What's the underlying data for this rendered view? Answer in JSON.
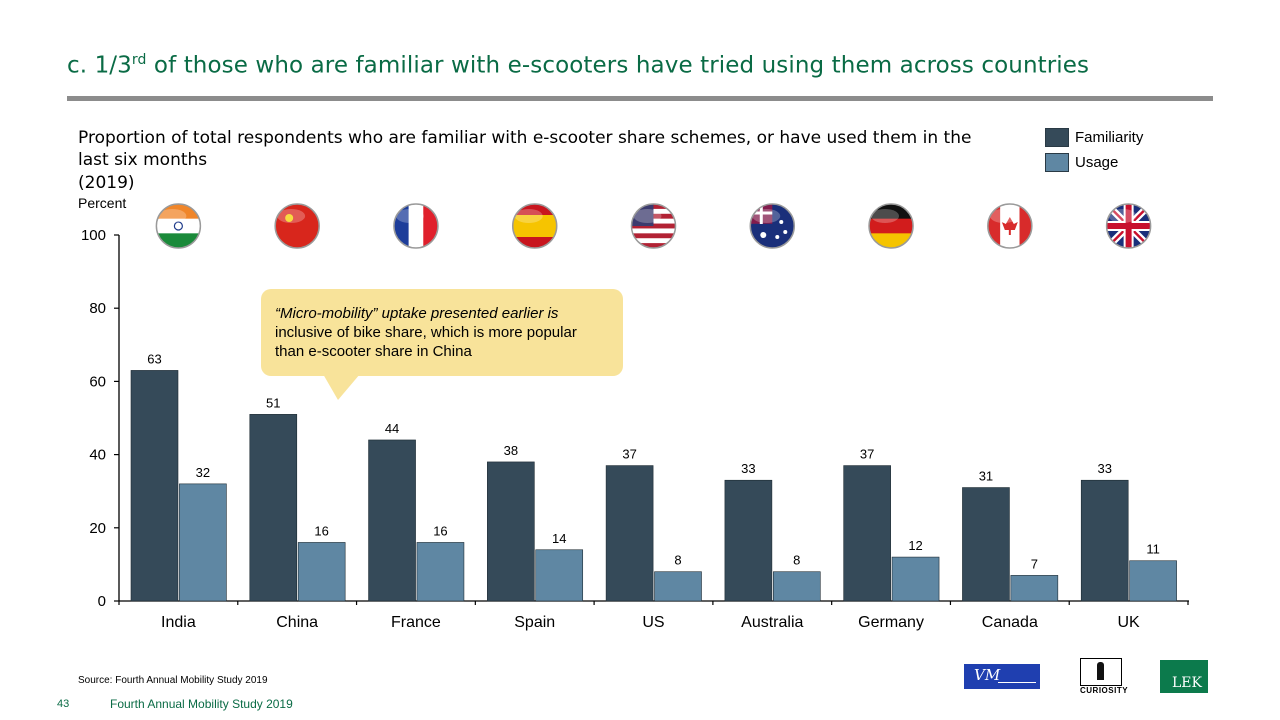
{
  "header": {
    "title_prefix": "c. 1/3",
    "title_sup": "rd",
    "title_rest": " of those who are familiar with e-scooters have tried using them across countries"
  },
  "chart_header": {
    "title": "Proportion of total respondents who are familiar with e-scooter share schemes, or have used them in the last six months",
    "year": "(2019)",
    "unit": "Percent"
  },
  "legend": {
    "familiarity": "Familiarity",
    "usage": "Usage"
  },
  "callout": {
    "text_italic": "“Micro-mobility” uptake presented earlier is",
    "text_rest": " inclusive of bike share, which is more popular than e-scooter share in China"
  },
  "chart_data": {
    "type": "bar",
    "categories": [
      "India",
      "China",
      "France",
      "Spain",
      "US",
      "Australia",
      "Germany",
      "Canada",
      "UK"
    ],
    "series": [
      {
        "name": "Familiarity",
        "values": [
          63,
          51,
          44,
          38,
          37,
          33,
          37,
          31,
          33
        ],
        "color": "#354a59"
      },
      {
        "name": "Usage",
        "values": [
          32,
          16,
          16,
          14,
          8,
          8,
          12,
          7,
          11
        ],
        "color": "#5f87a3"
      }
    ],
    "ylabel": "Percent",
    "ylim": [
      0,
      100
    ],
    "yticks": [
      0,
      20,
      40,
      60,
      80,
      100
    ],
    "grid": false,
    "legend_position": "top-right",
    "flag_icons": [
      "india-flag-icon",
      "china-flag-icon",
      "france-flag-icon",
      "spain-flag-icon",
      "us-flag-icon",
      "australia-flag-icon",
      "germany-flag-icon",
      "canada-flag-icon",
      "uk-flag-icon"
    ]
  },
  "footer": {
    "source": "Source:  Fourth Annual Mobility Study 2019",
    "page_number": "43",
    "study_name": "Fourth Annual Mobility Study 2019"
  },
  "logos": {
    "vm_text": "VM",
    "curiosity_text": "CURIOSITY",
    "lek_text": "LEK"
  },
  "colors": {
    "brand_green": "#0a6b45",
    "familiarity": "#354a59",
    "usage": "#5f87a3",
    "callout_fill": "#f8e39a"
  }
}
